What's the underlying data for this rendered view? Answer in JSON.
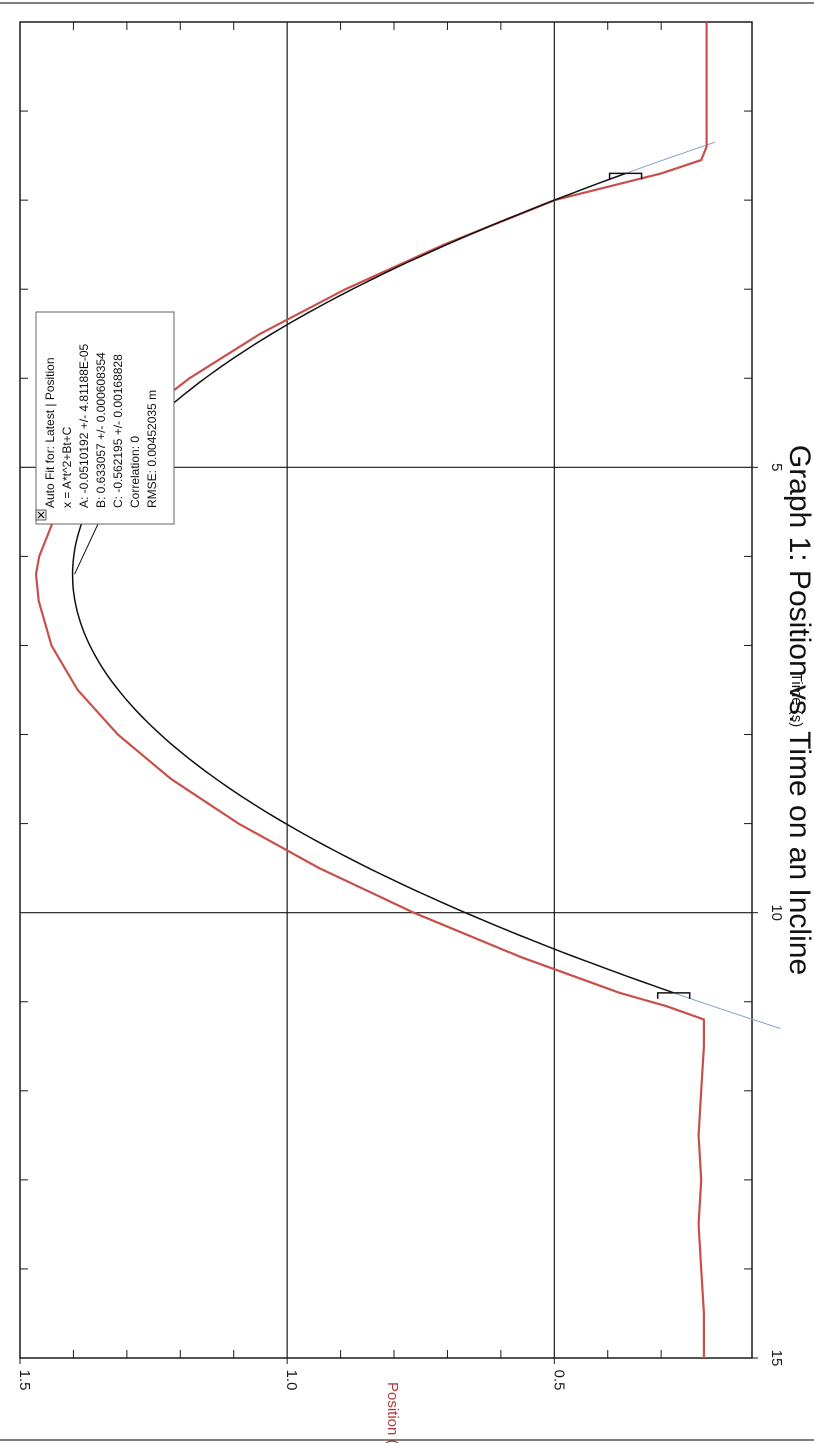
{
  "chart_data": {
    "type": "line",
    "orientation": "rotated-90-clockwise",
    "title": "Graph 1: Position vs. Time on an Incline",
    "xlabel": "Time (s)",
    "ylabel": "Position (m)",
    "xlim": [
      0,
      15
    ],
    "ylim": [
      0.13,
      1.5
    ],
    "x_ticks": [
      "5",
      "10",
      "15"
    ],
    "y_ticks": [
      "1.5",
      "1.0",
      "0.5"
    ],
    "grid": true,
    "colors": {
      "data": "#c8504a",
      "fit": "#111111",
      "ylabel": "#b03a3a",
      "fit_extension": "#8aa0c8"
    },
    "series": [
      {
        "name": "Latest | Position",
        "x": [
          0,
          0.5,
          1.0,
          1.4,
          1.55,
          1.7,
          2,
          2.5,
          3,
          3.5,
          4,
          4.5,
          5,
          5.5,
          6,
          6.2,
          6.5,
          7,
          7.5,
          8,
          8.5,
          9,
          9.5,
          10,
          10.5,
          10.9,
          11.05,
          11.2,
          11.5,
          12,
          12.5,
          13,
          13.5,
          14,
          14.5,
          15
        ],
        "y": [
          0.215,
          0.215,
          0.215,
          0.215,
          0.225,
          0.3,
          0.499,
          0.707,
          0.891,
          1.05,
          1.183,
          1.291,
          1.374,
          1.431,
          1.464,
          1.47,
          1.465,
          1.441,
          1.392,
          1.317,
          1.217,
          1.091,
          0.94,
          0.763,
          0.562,
          0.378,
          0.29,
          0.22,
          0.22,
          0.225,
          0.23,
          0.225,
          0.23,
          0.225,
          0.22,
          0.22
        ]
      }
    ],
    "fit": {
      "header": "Auto Fit for: Latest | Position",
      "equation": "x = A*t^2+Bt+C",
      "A": "A: -0.0510192 +/- 4.81188E-05",
      "B": "B: 0.633057 +/- 0.000608354",
      "C": "C: -0.562195 +/- 0.00168828",
      "correlation": "Correlation: 0",
      "rmse": "RMSE: 0.00452035 m",
      "coefficients": {
        "A": -0.0510192,
        "B": 0.633057,
        "C": -0.562195
      },
      "t_range": [
        1.7,
        10.9
      ],
      "extension_range": [
        1.35,
        11.3
      ]
    }
  }
}
